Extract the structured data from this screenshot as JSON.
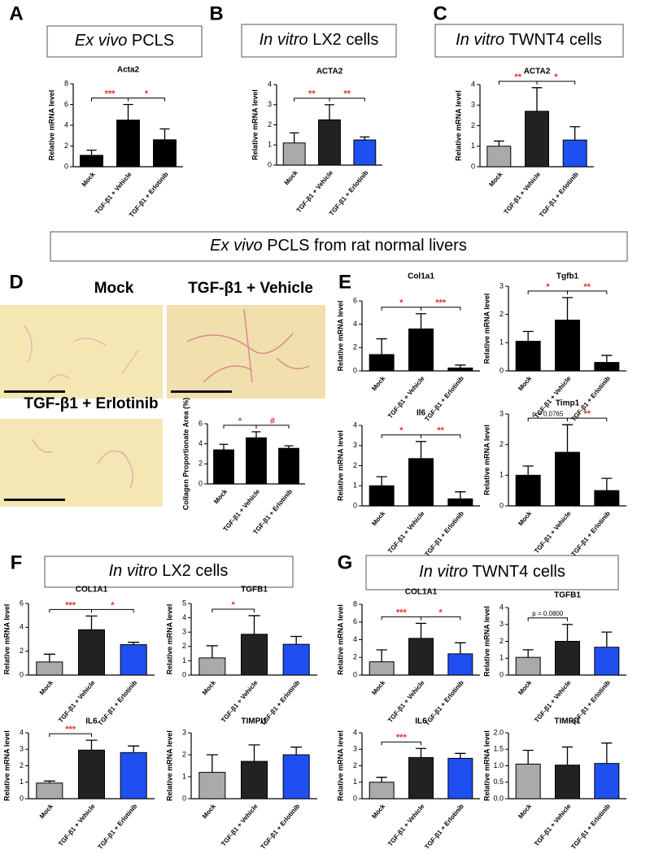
{
  "panels": {
    "labels": [
      "A",
      "B",
      "C",
      "D",
      "E",
      "F",
      "G"
    ],
    "headings": [
      {
        "italic": "Ex vivo",
        "text": "PCLS"
      },
      {
        "italic": "In vitro",
        "text": "LX2 cells"
      },
      {
        "italic": "In vitro",
        "text": "TWNT4 cells"
      },
      {
        "italic": "Ex vivo",
        "text": "PCLS from rat normal livers"
      },
      {
        "italic": "In vitro",
        "text": "LX2 cells"
      },
      {
        "italic": "In vitro",
        "text": "TWNT4 cells"
      }
    ],
    "image_labels": [
      "Mock",
      "TGF-β1 + Vehicle",
      "TGF-β1 + Erlotinib"
    ]
  },
  "chart_data": [
    {
      "type": "bar",
      "title": "Acta2",
      "y_label": "Relative mRNA level",
      "categories": [
        "Mock",
        "TGF-β1 + Vehicle",
        "TGF-β1 + Erlotinib"
      ],
      "values": [
        1.1,
        4.5,
        2.6
      ],
      "errors": [
        0.5,
        1.5,
        1.05
      ],
      "colors": [
        "#000000",
        "#000000",
        "#000000"
      ],
      "ylim": [
        0,
        8
      ],
      "yticks": [
        0,
        2,
        4,
        6,
        8
      ],
      "annotations": [
        {
          "label": "***",
          "categories": [
            0,
            1
          ],
          "color": "#e0302a"
        },
        {
          "label": "*",
          "categories": [
            1,
            2
          ],
          "color": "#e0302a"
        }
      ]
    },
    {
      "type": "bar",
      "title": "ACTA2",
      "y_label": "Relative mRNA level",
      "categories": [
        "Mock",
        "TGF-β1 + Vehicle",
        "TGF-β1 + Erlotinib"
      ],
      "values": [
        1.1,
        2.25,
        1.25
      ],
      "errors": [
        0.5,
        0.75,
        0.15
      ],
      "colors": [
        "#aaaaaa",
        "#222222",
        "#1f4ff0"
      ],
      "ylim": [
        0,
        4
      ],
      "yticks": [
        0,
        1,
        2,
        3,
        4
      ],
      "annotations": [
        {
          "label": "**",
          "categories": [
            0,
            1
          ],
          "color": "#e0302a"
        },
        {
          "label": "**",
          "categories": [
            1,
            2
          ],
          "color": "#e0302a"
        }
      ]
    },
    {
      "type": "bar",
      "title": "ACTA2",
      "y_label": "Relative mRNA level",
      "categories": [
        "Mock",
        "TGF-β1 + Vehicle",
        "TGF-β1 + Erlotinib"
      ],
      "values": [
        1.0,
        2.7,
        1.3
      ],
      "errors": [
        0.25,
        1.15,
        0.65
      ],
      "colors": [
        "#aaaaaa",
        "#222222",
        "#1f4ff0"
      ],
      "ylim": [
        0,
        4
      ],
      "yticks": [
        0,
        1,
        2,
        3,
        4
      ],
      "annotations": [
        {
          "label": "**",
          "categories": [
            0,
            1
          ],
          "color": "#e0302a"
        },
        {
          "label": "*",
          "categories": [
            1,
            2
          ],
          "color": "#e0302a"
        }
      ]
    },
    {
      "type": "bar",
      "y_label": "Collagen Proportionate Area (%)",
      "categories": [
        "Mock",
        "TGF-β1 + Vehicle",
        "TGF-β1 + Erlotinib"
      ],
      "values": [
        3.4,
        4.6,
        3.55
      ],
      "errors": [
        0.55,
        0.6,
        0.25
      ],
      "colors": [
        "#000000",
        "#000000",
        "#000000"
      ],
      "ylim": [
        0,
        6
      ],
      "yticks": [
        0,
        2,
        4,
        6
      ],
      "annotations": [
        {
          "label": "*",
          "categories": [
            0,
            1
          ],
          "color": "#e0302a"
        },
        {
          "label": "#",
          "categories": [
            1,
            2
          ],
          "color": "#e0302a"
        }
      ]
    },
    {
      "type": "bar",
      "title": "Col1a1",
      "y_label": "Relative mRNA level",
      "categories": [
        "Mock",
        "TGF-β1 + Vehicle",
        "TGF-β1 + Erlotinib"
      ],
      "values": [
        1.4,
        3.6,
        0.25
      ],
      "errors": [
        1.35,
        1.3,
        0.25
      ],
      "colors": [
        "#000000",
        "#000000",
        "#000000"
      ],
      "ylim": [
        0,
        6
      ],
      "yticks": [
        0,
        2,
        4,
        6
      ],
      "annotations": [
        {
          "label": "*",
          "categories": [
            0,
            1
          ],
          "color": "#e0302a"
        },
        {
          "label": "***",
          "categories": [
            1,
            2
          ],
          "color": "#e0302a"
        }
      ]
    },
    {
      "type": "bar",
      "title": "Tgfb1",
      "y_label": "Relative mRNA level",
      "categories": [
        "Mock",
        "TGF-β1 + Vehicle",
        "TGF-β1 + Erlotinib"
      ],
      "values": [
        1.05,
        1.8,
        0.3
      ],
      "errors": [
        0.35,
        0.8,
        0.25
      ],
      "colors": [
        "#000000",
        "#000000",
        "#000000"
      ],
      "ylim": [
        0,
        3
      ],
      "yticks": [
        0,
        1,
        2,
        3
      ],
      "annotations": [
        {
          "label": "*",
          "categories": [
            0,
            1
          ],
          "color": "#e0302a"
        },
        {
          "label": "**",
          "categories": [
            1,
            2
          ],
          "color": "#e0302a"
        }
      ]
    },
    {
      "type": "bar",
      "title": "Il6",
      "y_label": "Relative mRNA level",
      "categories": [
        "Mock",
        "TGF-β1 + Vehicle",
        "TGF-β1 + Erlotinib"
      ],
      "values": [
        1.0,
        2.35,
        0.35
      ],
      "errors": [
        0.45,
        0.85,
        0.35
      ],
      "colors": [
        "#000000",
        "#000000",
        "#000000"
      ],
      "ylim": [
        0,
        4
      ],
      "yticks": [
        0,
        1,
        2,
        3,
        4
      ],
      "annotations": [
        {
          "label": "*",
          "categories": [
            0,
            1
          ],
          "color": "#e0302a"
        },
        {
          "label": "**",
          "categories": [
            1,
            2
          ],
          "color": "#e0302a"
        }
      ]
    },
    {
      "type": "bar",
      "title": "Timp1",
      "y_label": "Relative mRNA level",
      "categories": [
        "Mock",
        "TGF-β1 + Vehicle",
        "TGF-β1 + Erlotinib"
      ],
      "values": [
        1.0,
        1.75,
        0.5
      ],
      "errors": [
        0.3,
        0.9,
        0.4
      ],
      "colors": [
        "#000000",
        "#000000",
        "#000000"
      ],
      "ylim": [
        0,
        3
      ],
      "yticks": [
        0,
        1,
        2,
        3
      ],
      "annotations": [
        {
          "label": "p = 0.0765",
          "categories": [
            0,
            1
          ],
          "color": "#000000"
        },
        {
          "label": "**",
          "categories": [
            1,
            2
          ],
          "color": "#e0302a"
        }
      ]
    },
    {
      "type": "bar",
      "title": "COL1A1",
      "y_label": "Relative mRNA level",
      "categories": [
        "Mock",
        "TGF-β1 + Vehicle",
        "TGF-β1 + Erlotinib"
      ],
      "values": [
        1.1,
        3.8,
        2.55
      ],
      "errors": [
        0.65,
        1.15,
        0.2
      ],
      "colors": [
        "#aaaaaa",
        "#222222",
        "#1f4ff0"
      ],
      "ylim": [
        0,
        6
      ],
      "yticks": [
        0,
        2,
        4,
        6
      ],
      "annotations": [
        {
          "label": "***",
          "categories": [
            0,
            1
          ],
          "color": "#e0302a"
        },
        {
          "label": "*",
          "categories": [
            1,
            2
          ],
          "color": "#e0302a"
        }
      ]
    },
    {
      "type": "bar",
      "title": "TGFB1",
      "y_label": "Relative mRNA level",
      "categories": [
        "Mock",
        "TGF-β1 + Vehicle",
        "TGF-β1 + Erlotinib"
      ],
      "values": [
        1.2,
        2.85,
        2.15
      ],
      "errors": [
        0.85,
        1.3,
        0.55
      ],
      "colors": [
        "#aaaaaa",
        "#222222",
        "#1f4ff0"
      ],
      "ylim": [
        0,
        5
      ],
      "yticks": [
        0,
        1,
        2,
        3,
        4,
        5
      ],
      "annotations": [
        {
          "label": "*",
          "categories": [
            0,
            1
          ],
          "color": "#e0302a"
        }
      ]
    },
    {
      "type": "bar",
      "title": "IL6",
      "y_label": "Relative mRNA level",
      "categories": [
        "Mock",
        "TGF-β1 + Vehicle",
        "TGF-β1 + Erlotinib"
      ],
      "values": [
        0.95,
        2.95,
        2.8
      ],
      "errors": [
        0.12,
        0.6,
        0.4
      ],
      "colors": [
        "#aaaaaa",
        "#222222",
        "#1f4ff0"
      ],
      "ylim": [
        0,
        4
      ],
      "yticks": [
        0,
        1,
        2,
        3,
        4
      ],
      "annotations": [
        {
          "label": "***",
          "categories": [
            0,
            1
          ],
          "color": "#e0302a"
        }
      ]
    },
    {
      "type": "bar",
      "title": "TIMPI1",
      "y_label": "Relative mRNA level",
      "categories": [
        "Mock",
        "TGF-β1 + Vehicle",
        "TGF-β1 + Erlotinib"
      ],
      "values": [
        1.2,
        1.7,
        2.0
      ],
      "errors": [
        0.8,
        0.75,
        0.35
      ],
      "colors": [
        "#aaaaaa",
        "#222222",
        "#1f4ff0"
      ],
      "ylim": [
        0,
        3
      ],
      "yticks": [
        0,
        1,
        2,
        3
      ],
      "annotations": []
    },
    {
      "type": "bar",
      "title": "COL1A1",
      "y_label": "Relative mRNA level",
      "categories": [
        "Mock",
        "TGF-β1 + Vehicle",
        "TGF-β1 + Erlotinib"
      ],
      "values": [
        1.5,
        4.15,
        2.4
      ],
      "errors": [
        1.35,
        1.7,
        1.25
      ],
      "colors": [
        "#aaaaaa",
        "#222222",
        "#1f4ff0"
      ],
      "ylim": [
        0,
        8
      ],
      "yticks": [
        0,
        2,
        4,
        6,
        8
      ],
      "annotations": [
        {
          "label": "***",
          "categories": [
            0,
            1
          ],
          "color": "#e0302a"
        },
        {
          "label": "*",
          "categories": [
            1,
            2
          ],
          "color": "#e0302a"
        }
      ]
    },
    {
      "type": "bar",
      "title": "TGFB1",
      "y_label": "Relative mRNA level",
      "categories": [
        "Mock",
        "TGF-β1 + Vehicle",
        "TGF-β1 + Erlotinib"
      ],
      "values": [
        1.05,
        2.0,
        1.65
      ],
      "errors": [
        0.45,
        1.0,
        0.9
      ],
      "colors": [
        "#aaaaaa",
        "#222222",
        "#1f4ff0"
      ],
      "ylim": [
        0,
        4
      ],
      "yticks": [
        0,
        1,
        2,
        3,
        4
      ],
      "annotations": [
        {
          "label": "p = 0.0800",
          "categories": [
            0,
            1
          ],
          "color": "#000000"
        }
      ]
    },
    {
      "type": "bar",
      "title": "IL6",
      "y_label": "Relative mRNA level",
      "categories": [
        "Mock",
        "TGF-β1 + Vehicle",
        "TGF-β1 + Erlotinib"
      ],
      "values": [
        1.0,
        2.5,
        2.45
      ],
      "errors": [
        0.3,
        0.55,
        0.3
      ],
      "colors": [
        "#aaaaaa",
        "#222222",
        "#1f4ff0"
      ],
      "ylim": [
        0,
        4
      ],
      "yticks": [
        0,
        1,
        2,
        3,
        4
      ],
      "annotations": [
        {
          "label": "***",
          "categories": [
            0,
            1
          ],
          "color": "#e0302a"
        }
      ]
    },
    {
      "type": "bar",
      "title": "TIMPI1",
      "y_label": "Relative mRNA level",
      "categories": [
        "Mock",
        "TGF-β1 + Vehicle",
        "TGF-β1 + Erlotinib"
      ],
      "values": [
        1.05,
        1.02,
        1.07
      ],
      "errors": [
        0.42,
        0.55,
        0.62
      ],
      "colors": [
        "#aaaaaa",
        "#222222",
        "#1f4ff0"
      ],
      "ylim": [
        0,
        2
      ],
      "yticks": [
        {
          "value": 0,
          "label": "0.0"
        },
        {
          "value": 0.5,
          "label": "0.5"
        },
        {
          "value": 1,
          "label": "1.0"
        },
        {
          "value": 1.5,
          "label": "1.5"
        },
        {
          "value": 2,
          "label": "2.0"
        }
      ],
      "annotations": []
    }
  ]
}
